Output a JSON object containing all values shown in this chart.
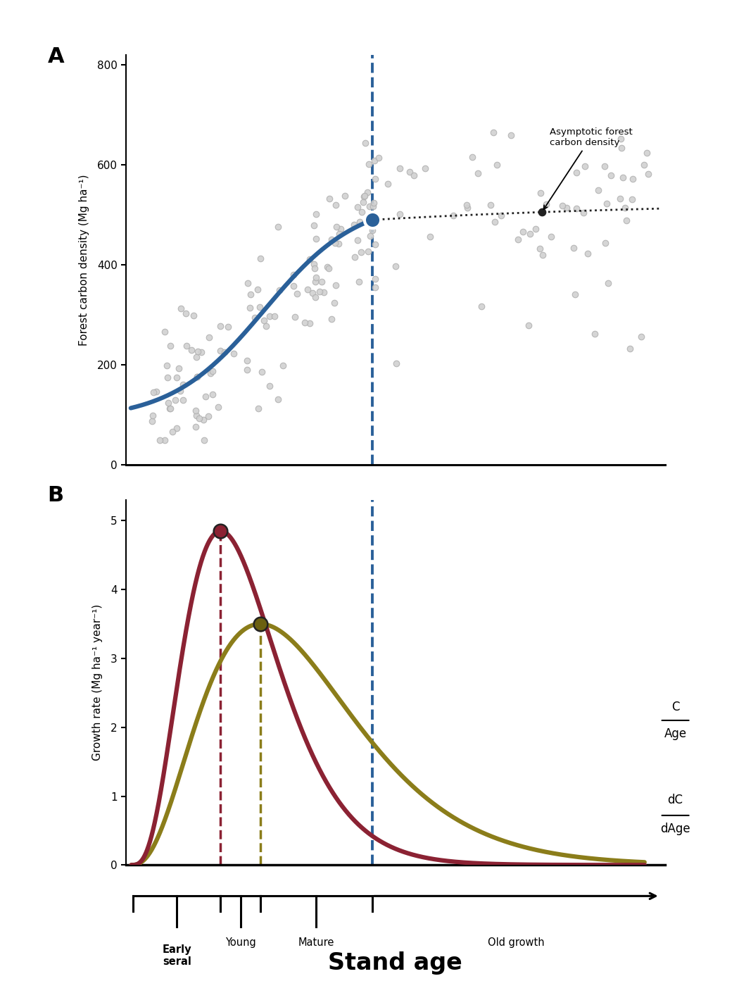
{
  "fig_width": 10.5,
  "fig_height": 14.2,
  "bg_color": "#ffffff",
  "panel_A_label": "A",
  "panel_B_label": "B",
  "scatter_color": "#d0d0d0",
  "scatter_edge_color": "#b0b0b0",
  "scatter_size": 38,
  "curve_A_color": "#2a6099",
  "curve_A_lw": 4.5,
  "blue_dot_color": "#2a6099",
  "vline_color": "#2a6099",
  "vline_lw": 2.8,
  "ylabel_A": "Forest carbon density (Mg ha⁻¹)",
  "ylim_A": [
    0,
    820
  ],
  "yticks_A": [
    0,
    200,
    400,
    600,
    800
  ],
  "dC_curve_color": "#8b2233",
  "dC_curve_lw": 4.5,
  "C_Age_curve_color": "#8b7d1a",
  "C_Age_curve_lw": 4.5,
  "red_dot_color": "#8b2233",
  "olive_dot_color": "#6b6010",
  "red_vline_color": "#8b2233",
  "olive_vline_color": "#8b7d1a",
  "blue_vline_color_B": "#2a6099",
  "ylabel_B": "Growth rate (Mg ha⁻¹ year⁻¹)",
  "ylim_B": [
    0,
    5.3
  ],
  "yticks_B": [
    0,
    1,
    2,
    3,
    4,
    5
  ],
  "xlabel_bottom": "Stand age",
  "annotation_asymptotic": "Asymptotic forest\ncarbon density",
  "early_seral_label": "Early\nseral",
  "young_label": "Young",
  "mature_label": "Mature",
  "old_growth_label": "Old growth"
}
